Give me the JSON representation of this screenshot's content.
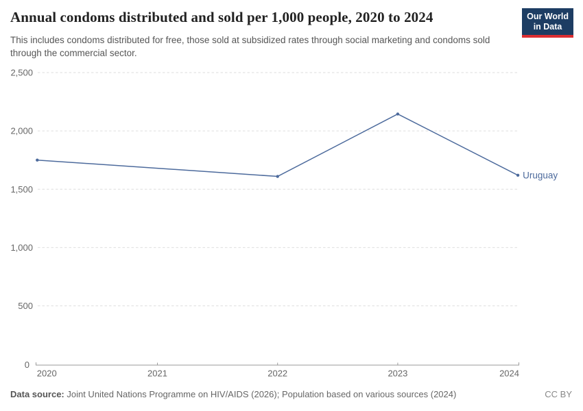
{
  "header": {
    "title": "Annual condoms distributed and sold per 1,000 people, 2020 to 2024",
    "subtitle": "This includes condoms distributed for free, those sold at subsidized rates through social marketing and condoms sold through the commercial sector.",
    "logo": {
      "line1": "Our World",
      "line2": "in Data"
    }
  },
  "chart_data": {
    "type": "line",
    "title": "Annual condoms distributed and sold per 1,000 people, 2020 to 2024",
    "series": [
      {
        "name": "Uruguay",
        "x": [
          2020,
          2022,
          2023,
          2024
        ],
        "values": [
          1750,
          1610,
          2145,
          1620
        ],
        "color": "#4c6a9c"
      }
    ],
    "entity_label": "Uruguay",
    "x_ticks": [
      2020,
      2021,
      2022,
      2023,
      2024
    ],
    "x_tick_labels": [
      "2020",
      "2021",
      "2022",
      "2023",
      "2024"
    ],
    "y_ticks": [
      0,
      500,
      1000,
      1500,
      2000,
      2500
    ],
    "y_tick_labels": [
      "0",
      "500",
      "1,000",
      "1,500",
      "2,000",
      "2,500"
    ],
    "xlim": [
      2020,
      2024
    ],
    "ylim": [
      0,
      2500
    ],
    "grid": "horizontal-dashed",
    "legend_position": "end-of-line-label"
  },
  "footer": {
    "data_source_label": "Data source:",
    "data_source_text": " Joint United Nations Programme on HIV/AIDS (2026); Population based on various sources (2024)",
    "license": "CC BY"
  },
  "colors": {
    "line": "#4c6a9c",
    "grid": "#dedede",
    "axis": "#999999",
    "tick_text": "#666666",
    "logo_bg": "#1d3d63",
    "logo_bar": "#dc2e32"
  }
}
